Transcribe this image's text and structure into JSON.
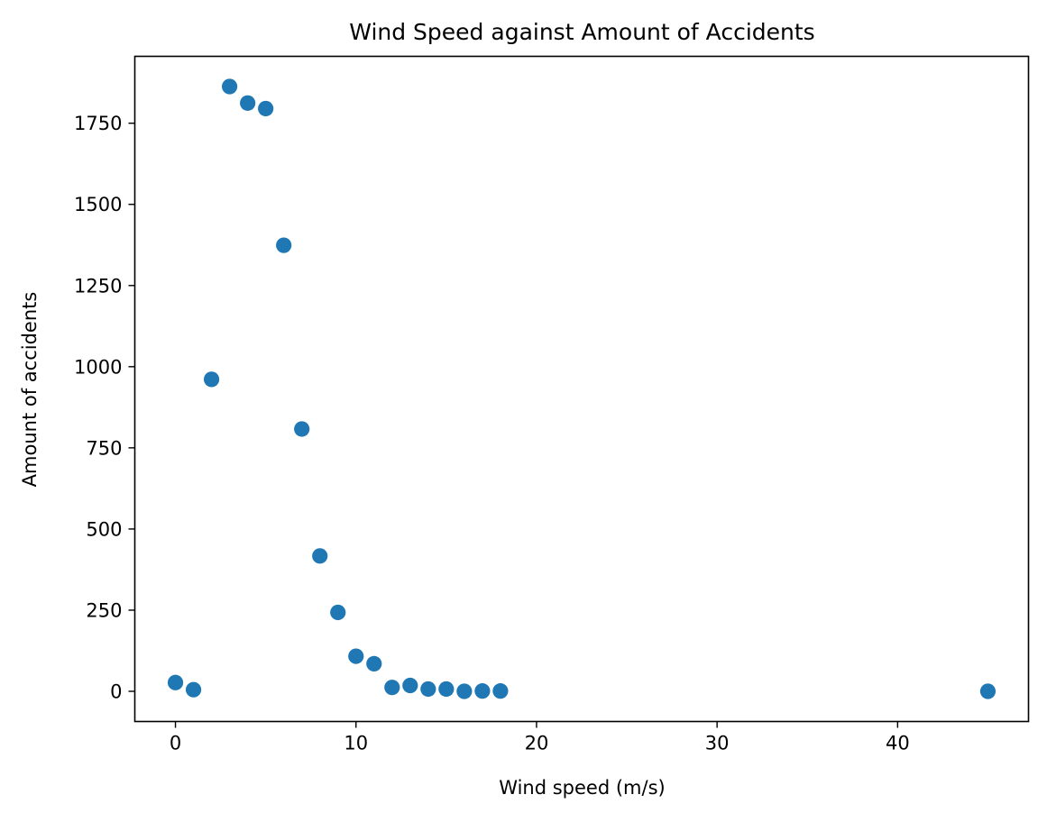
{
  "chart_data": {
    "type": "scatter",
    "title": "Wind Speed against Amount of Accidents",
    "xlabel": "Wind speed (m/s)",
    "ylabel": "Amount of accidents",
    "xlim": [
      -2.25,
      47.25
    ],
    "ylim": [
      -93,
      1956
    ],
    "xticks": [
      0,
      10,
      20,
      30,
      40
    ],
    "yticks": [
      0,
      250,
      500,
      750,
      1000,
      1250,
      1500,
      1750
    ],
    "grid": false,
    "legend": "none",
    "marker_color": "#1f77b4",
    "x": [
      0,
      1,
      2,
      3,
      4,
      5,
      6,
      7,
      8,
      9,
      10,
      11,
      12,
      13,
      14,
      15,
      16,
      17,
      18,
      45
    ],
    "y": [
      27,
      5,
      961,
      1863,
      1812,
      1795,
      1374,
      808,
      417,
      243,
      108,
      85,
      12,
      18,
      7,
      7,
      0,
      1,
      1,
      0
    ]
  }
}
